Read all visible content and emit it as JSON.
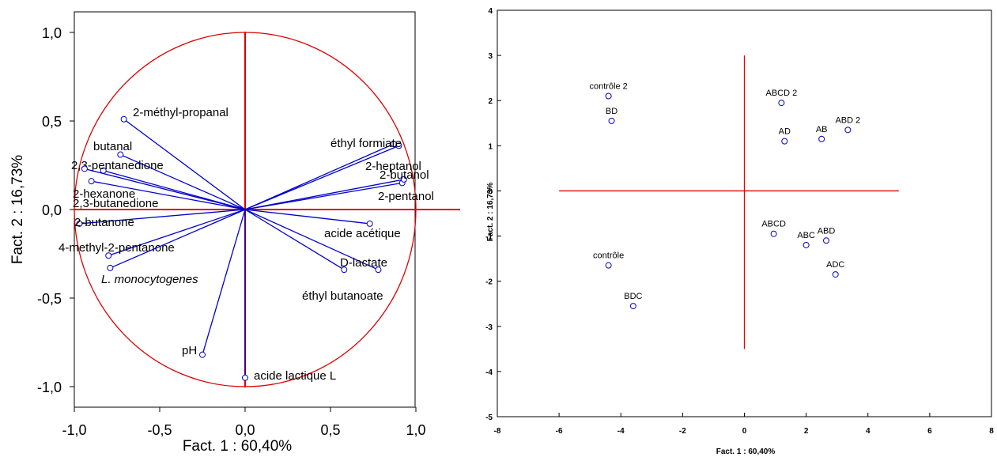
{
  "chart_data": [
    {
      "type": "scatter",
      "subtype": "correlation-circle",
      "title": "",
      "xlabel": "Fact. 1  : 60,40%",
      "ylabel": "Fact. 2  : 16,73%",
      "xlim": [
        -1.1,
        1.1
      ],
      "ylim": [
        -1.1,
        1.1
      ],
      "xticks": [
        "-1,0",
        "-0,5",
        "0,0",
        "0,5",
        "1,0"
      ],
      "yticks": [
        "1,0",
        "0,5",
        "0,0",
        "-0,5",
        "-1,0"
      ],
      "grid": false,
      "colors": {
        "vector": "#0000cc",
        "circle": "#dd0000",
        "axes": "#dd0000",
        "frame": "#000000"
      },
      "vectors": [
        {
          "name": "2-méthyl-propanal",
          "x": -0.71,
          "y": 0.51
        },
        {
          "name": "butanal",
          "x": -0.73,
          "y": 0.31
        },
        {
          "name": "2,3-pentanedione",
          "x": -0.83,
          "y": 0.22
        },
        {
          "name": "2-hexanone",
          "x": -0.9,
          "y": 0.16
        },
        {
          "name": "2,3-butanedione",
          "x": -0.94,
          "y": 0.23
        },
        {
          "name": "2-butanone",
          "x": -0.97,
          "y": -0.08
        },
        {
          "name": "4-methyl-2-pentanone",
          "x": -0.8,
          "y": -0.26
        },
        {
          "name": "L. monocytogenes",
          "x": -0.79,
          "y": -0.33
        },
        {
          "name": "pH",
          "x": -0.25,
          "y": -0.82
        },
        {
          "name": "acide lactique L",
          "x": 0.0,
          "y": -0.95
        },
        {
          "name": "éthyl butanoate",
          "x": 0.58,
          "y": -0.34
        },
        {
          "name": "D-lactate",
          "x": 0.78,
          "y": -0.34
        },
        {
          "name": "acide acétique",
          "x": 0.73,
          "y": -0.08
        },
        {
          "name": "2-pentanol",
          "x": 0.92,
          "y": 0.15
        },
        {
          "name": "2-butanol",
          "x": 0.93,
          "y": 0.17
        },
        {
          "name": "2-heptanol",
          "x": 0.9,
          "y": 0.36
        },
        {
          "name": "éthyl formiate",
          "x": 0.87,
          "y": 0.37
        }
      ]
    },
    {
      "type": "scatter",
      "title": "",
      "xlabel": "Fact. 1 : 60,40%",
      "ylabel": "Fact. 2 : 16,73%",
      "xlim": [
        -8,
        8
      ],
      "ylim": [
        -5,
        4
      ],
      "xticks": [
        "-8",
        "-6",
        "-4",
        "-2",
        "0",
        "2",
        "4",
        "6",
        "8"
      ],
      "yticks": [
        "4",
        "3",
        "2",
        "1",
        "0",
        "-1",
        "-2",
        "-3",
        "-4",
        "-5"
      ],
      "grid": false,
      "colors": {
        "point": "#0000cc",
        "axes": "#dd0000",
        "frame": "#000000"
      },
      "points": [
        {
          "label": "contrôle 2",
          "x": -4.4,
          "y": 2.1
        },
        {
          "label": "BD",
          "x": -4.3,
          "y": 1.55
        },
        {
          "label": "ABCD 2",
          "x": 1.2,
          "y": 1.95
        },
        {
          "label": "AD",
          "x": 1.3,
          "y": 1.1
        },
        {
          "label": "AB",
          "x": 2.5,
          "y": 1.15
        },
        {
          "label": "ABD 2",
          "x": 3.35,
          "y": 1.35
        },
        {
          "label": "ABCD",
          "x": 0.95,
          "y": -0.95
        },
        {
          "label": "ABC",
          "x": 2.0,
          "y": -1.2
        },
        {
          "label": "ABD",
          "x": 2.65,
          "y": -1.1
        },
        {
          "label": "ADC",
          "x": 2.95,
          "y": -1.85
        },
        {
          "label": "contrôle",
          "x": -4.4,
          "y": -1.65
        },
        {
          "label": "BDC",
          "x": -3.6,
          "y": -2.55
        }
      ]
    }
  ]
}
